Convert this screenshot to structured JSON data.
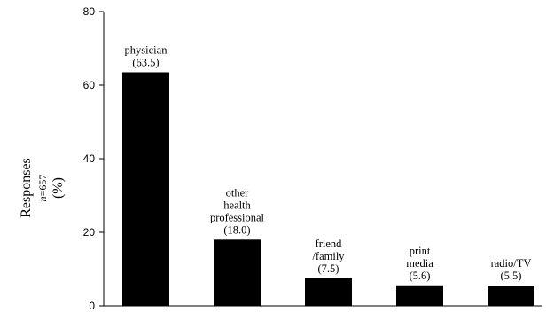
{
  "chart_data": {
    "type": "bar",
    "ylabel": "Responses",
    "ylabel_n": "n=657",
    "ylabel_unit": "(%)",
    "ylim": [
      0,
      80
    ],
    "yticks": [
      0,
      20,
      40,
      60,
      80
    ],
    "grid": false,
    "categories": [
      [
        "physician",
        "(63.5)"
      ],
      [
        "other",
        "health",
        "professional",
        "(18.0)"
      ],
      [
        "friend",
        "/family",
        "(7.5)"
      ],
      [
        "print",
        "media",
        "(5.6)"
      ],
      [
        "radio/TV",
        "(5.5)"
      ]
    ],
    "values": [
      63.5,
      18.0,
      7.5,
      5.6,
      5.5
    ],
    "bar_color": "#000000"
  }
}
